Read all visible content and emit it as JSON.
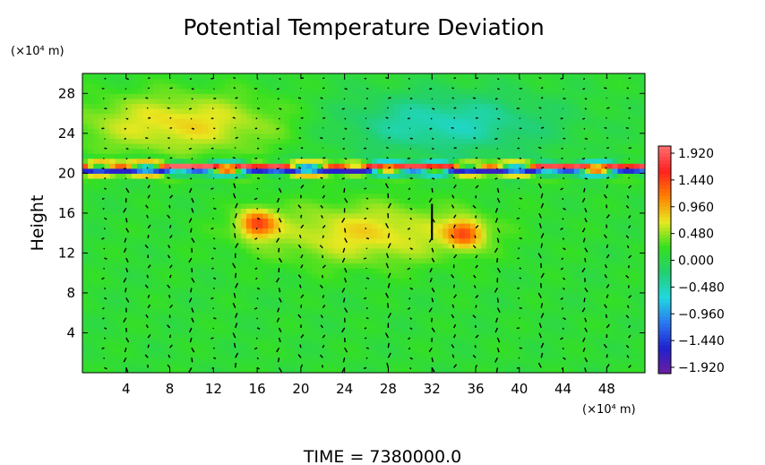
{
  "chart_data": {
    "type": "heatmap",
    "title": "Potential Temperature Deviation",
    "ylabel": "Height",
    "x_units": "(×10⁴ m)",
    "y_units": "(×10⁴ m)",
    "xlim": [
      0,
      51.5
    ],
    "ylim": [
      0,
      30
    ],
    "x_ticks": [
      "4",
      "8",
      "12",
      "16",
      "20",
      "24",
      "28",
      "32",
      "36",
      "40",
      "44",
      "48"
    ],
    "x_tick_values": [
      4,
      8,
      12,
      16,
      20,
      24,
      28,
      32,
      36,
      40,
      44,
      48
    ],
    "y_ticks": [
      "4",
      "8",
      "12",
      "16",
      "20",
      "24",
      "28"
    ],
    "y_tick_values": [
      4,
      8,
      12,
      16,
      20,
      24,
      28
    ],
    "colorbar": {
      "labels": [
        "1.920",
        "1.440",
        "0.960",
        "0.480",
        "0.000",
        "−0.480",
        "−0.960",
        "−1.440",
        "−1.920"
      ],
      "values": [
        1.92,
        1.44,
        0.96,
        0.48,
        0.0,
        -0.48,
        -0.96,
        -1.44,
        -1.92
      ],
      "min": -1.92,
      "max": 1.92,
      "colormap": [
        "#6b1fa0",
        "#2020d0",
        "#2a78f0",
        "#20d8e0",
        "#22d070",
        "#36e020",
        "#e8e820",
        "#ff8000",
        "#ff2020",
        "#ff7070"
      ]
    },
    "annotations": {
      "time_label": "TIME = 7380000.0"
    },
    "background_value": 0.1,
    "features": [
      {
        "desc": "positive anomaly upper left",
        "x": 9,
        "y": 25,
        "value": 0.7
      },
      {
        "desc": "negative anomaly upper center",
        "x": 33,
        "y": 25,
        "value": -0.5
      },
      {
        "desc": "strong dipole layer (tropopause)",
        "y_center": 20.5,
        "amplitude": 1.9
      },
      {
        "desc": "localized warm spot",
        "x": 16,
        "y": 15,
        "value": 1.2
      },
      {
        "desc": "localized warm spot",
        "x": 35,
        "y": 14,
        "value": 1.1
      },
      {
        "desc": "warm patch",
        "x": 26,
        "y": 14,
        "value": 0.7
      }
    ],
    "vector_field": {
      "grid_dx": 2.0,
      "grid_dy": 1.0,
      "notable_vectors": [
        {
          "x": 32,
          "y": 14.5,
          "u": 0.0,
          "v": 3.0
        }
      ]
    }
  }
}
